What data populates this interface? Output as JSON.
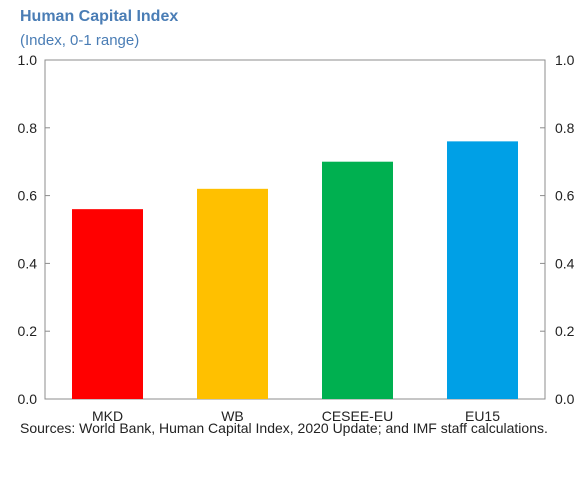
{
  "chart_data": {
    "type": "bar",
    "title": "Human Capital Index",
    "subtitle": "(Index, 0-1 range)",
    "categories": [
      "MKD",
      "WB",
      "CESEE-EU",
      "EU15"
    ],
    "values": [
      0.56,
      0.62,
      0.7,
      0.76
    ],
    "colors": [
      "#ff0000",
      "#ffc000",
      "#00b050",
      "#00a0e6"
    ],
    "ylim": [
      0,
      1
    ],
    "yticks": [
      "0.0",
      "0.2",
      "0.4",
      "0.6",
      "0.8",
      "1.0"
    ],
    "secondary_axis": true,
    "grid": false,
    "source": "Sources: World Bank, Human Capital Index, 2020 Update; and IMF staff calculations."
  }
}
